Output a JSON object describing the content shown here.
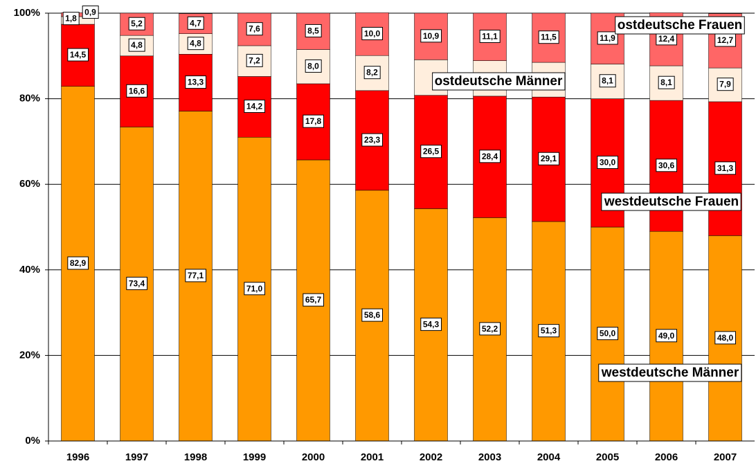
{
  "chart_data": {
    "type": "stacked-bar",
    "categories": [
      "1996",
      "1997",
      "1998",
      "1999",
      "2000",
      "2001",
      "2002",
      "2003",
      "2004",
      "2005",
      "2006",
      "2007"
    ],
    "series": [
      {
        "name": "westdeutsche Männer",
        "color": "#ff9900",
        "values": [
          82.9,
          73.4,
          77.1,
          71.0,
          65.7,
          58.6,
          54.3,
          52.2,
          51.3,
          50.0,
          49.0,
          48.0
        ],
        "value_labels": [
          "82,9",
          "73,4",
          "77,1",
          "71,0",
          "65,7",
          "58,6",
          "54,3",
          "52,2",
          "51,3",
          "50,0",
          "49,0",
          "48,0"
        ]
      },
      {
        "name": "westdeutsche Frauen",
        "color": "#ff0000",
        "values": [
          14.5,
          16.6,
          13.3,
          14.2,
          17.8,
          23.3,
          26.5,
          28.4,
          29.1,
          30.0,
          30.6,
          31.3
        ],
        "value_labels": [
          "14,5",
          "16,6",
          "13,3",
          "14,2",
          "17,8",
          "23,3",
          "26,5",
          "28,4",
          "29,1",
          "30,0",
          "30,6",
          "31,3"
        ]
      },
      {
        "name": "ostdeutsche Männer",
        "color": "#ffeedd",
        "values": [
          1.8,
          4.8,
          4.8,
          7.2,
          8.0,
          8.2,
          8.3,
          8.3,
          8.1,
          8.1,
          8.1,
          7.9
        ],
        "value_labels": [
          "1,8",
          "4,8",
          "4,8",
          "7,2",
          "8,0",
          "8,2",
          null,
          null,
          null,
          "8,1",
          "8,1",
          "7,9"
        ]
      },
      {
        "name": "ostdeutsche Frauen",
        "color": "#ff6666",
        "values": [
          0.9,
          5.2,
          4.7,
          7.6,
          8.5,
          10.0,
          10.9,
          11.1,
          11.5,
          11.9,
          12.4,
          12.7
        ],
        "value_labels": [
          "0,9",
          "5,2",
          "4,7",
          "7,6",
          "8,5",
          "10,0",
          "10,9",
          "11,1",
          "11,5",
          "11,9",
          "12,4",
          "12,7"
        ]
      }
    ],
    "ylim": [
      0,
      100
    ],
    "yticks": [
      {
        "value": 0,
        "label": "0%"
      },
      {
        "value": 20,
        "label": "20%"
      },
      {
        "value": 40,
        "label": "40%"
      },
      {
        "value": 60,
        "label": "60%"
      },
      {
        "value": 80,
        "label": "80%"
      },
      {
        "value": 100,
        "label": "100%"
      }
    ],
    "grid": true
  }
}
